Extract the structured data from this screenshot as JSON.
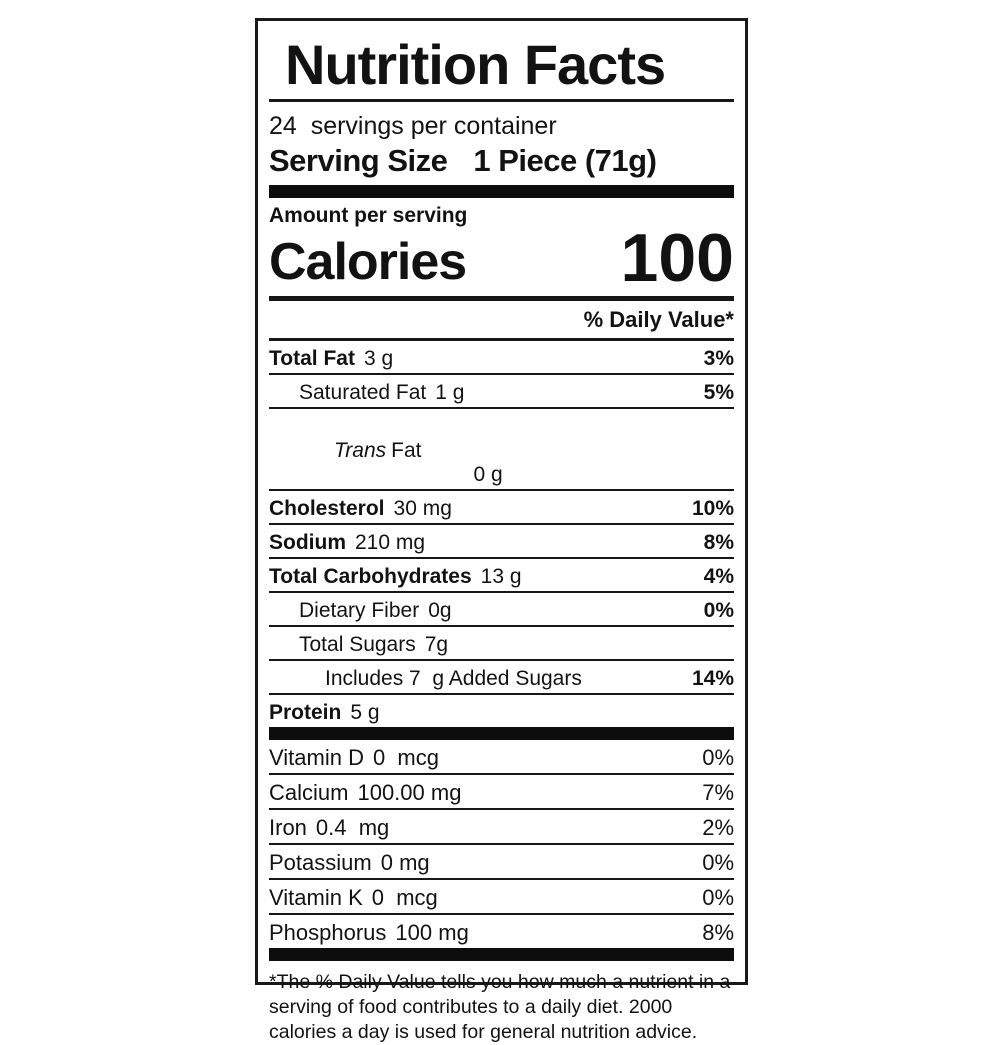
{
  "label": {
    "title": "Nutrition Facts",
    "servings_per_container": "24  servings per container",
    "serving_size_label": "Serving Size",
    "serving_size_value": "1 Piece (71g)",
    "amount_per_serving": "Amount per serving",
    "calories_label": "Calories",
    "calories_value": "100",
    "daily_value_header": "% Daily Value*",
    "nutrients": [
      {
        "name": "Total Fat",
        "value": "3 g",
        "dv": "3%"
      },
      {
        "name": "Saturated Fat",
        "value": "1 g",
        "dv": "5%"
      },
      {
        "name_italic": "Trans",
        "name": "Fat",
        "value": "0 g",
        "dv": ""
      },
      {
        "name": "Cholesterol",
        "value": "30 mg",
        "dv": "10%"
      },
      {
        "name": "Sodium",
        "value": "210 mg",
        "dv": "8%"
      },
      {
        "name": "Total Carbohydrates",
        "value": "13 g",
        "dv": "4%"
      },
      {
        "name": "Dietary Fiber",
        "value": "0g",
        "dv": "0%"
      },
      {
        "name": "Total Sugars",
        "value": "7g",
        "dv": ""
      },
      {
        "name": "Includes 7  g Added Sugars",
        "value": "",
        "dv": "14%"
      },
      {
        "name": "Protein",
        "value": "5 g",
        "dv": ""
      }
    ],
    "vitamins": [
      {
        "name": "Vitamin D",
        "value": "0  mcg",
        "dv": "0%"
      },
      {
        "name": "Calcium",
        "value": "100.00 mg",
        "dv": "7%"
      },
      {
        "name": "Iron",
        "value": "0.4  mg",
        "dv": "2%"
      },
      {
        "name": "Potassium",
        "value": "0 mg",
        "dv": "0%"
      },
      {
        "name": "Vitamin K",
        "value": "0  mcg",
        "dv": "0%"
      },
      {
        "name": "Phosphorus",
        "value": "100 mg",
        "dv": "8%"
      }
    ],
    "footnote": "*The % Daily Value tells you how much a nutrient in a serving of food contributes to a daily diet. 2000 calories a day is used for general nutrition advice."
  }
}
